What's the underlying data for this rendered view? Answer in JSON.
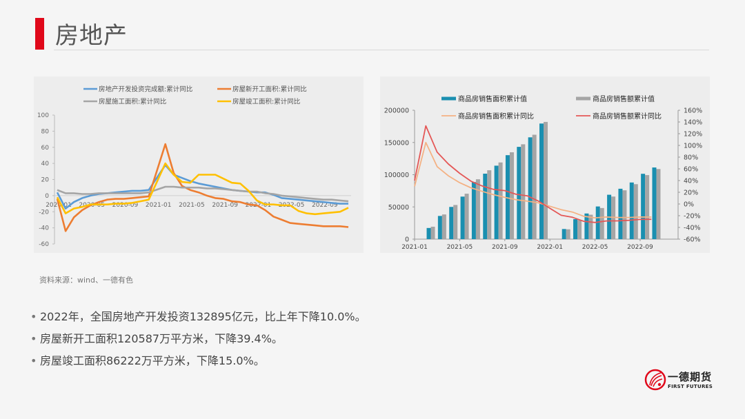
{
  "header": {
    "title": "房地产",
    "accent_color": "#e0081a"
  },
  "source_note": "资料来源：wind、一德有色",
  "bullets": [
    "2022年，全国房地产开发投资132895亿元，比上年下降10.0%。",
    "房屋新开工面积120587万平方米，下降39.4%。",
    "房屋竣工面积86222万平方米，下降15.0%。"
  ],
  "logo": {
    "name_cn": "一德期货",
    "name_en": "FIRST FUTURES"
  },
  "chart_data": [
    {
      "type": "line",
      "title": "",
      "legend": [
        "房地产开发投资完成额:累计同比",
        "房屋新开工面积:累计同比",
        "房屋施工面积:累计同比",
        "房屋竣工面积:累计同比"
      ],
      "legend_position": "top",
      "xlabel": "",
      "ylabel": "",
      "ylim": [
        -60,
        100
      ],
      "yticks": [
        100,
        80,
        60,
        40,
        20,
        0,
        -20,
        -40,
        -60
      ],
      "xticks": [
        "2020-01",
        "2020-05",
        "2020-09",
        "2021-01",
        "2021-05",
        "2021-09",
        "2022-01",
        "2022-05",
        "2022-09"
      ],
      "x": [
        "2020-01",
        "2020-02",
        "2020-03",
        "2020-04",
        "2020-05",
        "2020-06",
        "2020-07",
        "2020-08",
        "2020-09",
        "2020-10",
        "2020-11",
        "2020-12",
        "2021-01",
        "2021-02",
        "2021-03",
        "2021-04",
        "2021-05",
        "2021-06",
        "2021-07",
        "2021-08",
        "2021-09",
        "2021-10",
        "2021-11",
        "2021-12",
        "2022-01",
        "2022-02",
        "2022-03",
        "2022-04",
        "2022-05",
        "2022-06",
        "2022-07",
        "2022-08",
        "2022-09",
        "2022-10",
        "2022-11",
        "2022-12"
      ],
      "series": [
        {
          "name": "房地产开发投资完成额:累计同比",
          "color": "#5b9bd5",
          "values": [
            4,
            -16,
            -8,
            -3,
            0,
            2,
            3,
            4,
            5,
            6,
            6,
            7,
            null,
            38,
            26,
            22,
            18,
            15,
            13,
            11,
            9,
            7,
            6,
            5,
            4,
            4,
            1,
            -3,
            -4,
            -5,
            -6,
            -7,
            -8,
            -9,
            -10,
            -10
          ]
        },
        {
          "name": "房屋新开工面积:累计同比",
          "color": "#ed7d31",
          "values": [
            -4,
            -44,
            -27,
            -18,
            -12,
            -8,
            -5,
            -4,
            -4,
            -3,
            -2,
            -1,
            null,
            64,
            28,
            12,
            7,
            4,
            0,
            -3,
            -4,
            -7,
            -8,
            -11,
            -12,
            -18,
            -26,
            -30,
            -34,
            -35,
            -36,
            -37,
            -38,
            -38,
            -38,
            -39
          ]
        },
        {
          "name": "房屋施工面积:累计同比",
          "color": "#a5a5a5",
          "values": [
            7,
            3,
            3,
            2,
            2,
            3,
            3,
            3,
            3,
            3,
            3,
            4,
            null,
            11,
            11,
            10,
            10,
            10,
            9,
            9,
            8,
            7,
            6,
            5,
            5,
            3,
            2,
            0,
            -1,
            -2,
            -3,
            -4,
            -5,
            -5,
            -6,
            -7
          ]
        },
        {
          "name": "房屋竣工面积:累计同比",
          "color": "#ffc000",
          "values": [
            -2,
            -22,
            -16,
            -14,
            -11,
            -11,
            -11,
            -10,
            -10,
            -9,
            -7,
            -5,
            null,
            40,
            26,
            17,
            16,
            26,
            26,
            26,
            21,
            16,
            15,
            6,
            -6,
            -11,
            -11,
            -12,
            -12,
            -19,
            -22,
            -23,
            -22,
            -21,
            -20,
            -15
          ]
        }
      ]
    },
    {
      "type": "bar",
      "title": "",
      "legend": [
        "商品房销售面积累计值",
        "商品房销售额累计值",
        "商品房销售面积累计同比",
        "商品房销售额累计同比"
      ],
      "legend_position": "top",
      "xlabel": "",
      "ylabel": "",
      "y2label": "",
      "ylim": [
        0,
        200000
      ],
      "y2lim": [
        -60,
        160
      ],
      "yticks": [
        200000,
        150000,
        100000,
        50000,
        0
      ],
      "y2ticks": [
        "160%",
        "140%",
        "120%",
        "100%",
        "80%",
        "60%",
        "40%",
        "20%",
        "0%",
        "-20%",
        "-40%",
        "-60%"
      ],
      "xticks": [
        "2021-01",
        "2021-05",
        "2021-09",
        "2022-01",
        "2022-05",
        "2022-09"
      ],
      "categories": [
        "2021-01",
        "2021-02",
        "2021-03",
        "2021-04",
        "2021-05",
        "2021-06",
        "2021-07",
        "2021-08",
        "2021-09",
        "2021-10",
        "2021-11",
        "2021-12",
        "2022-01",
        "2022-02",
        "2022-03",
        "2022-04",
        "2022-05",
        "2022-06",
        "2022-07",
        "2022-08",
        "2022-09",
        "2022-10",
        "2022-11"
      ],
      "series": [
        {
          "name": "商品房销售面积累计值",
          "kind": "bar",
          "axis": "left",
          "color": "#1a8fb0",
          "values": [
            null,
            17300,
            36000,
            50000,
            66000,
            88600,
            101600,
            114000,
            130300,
            143200,
            158000,
            179400,
            null,
            15700,
            31000,
            39800,
            50700,
            68900,
            78200,
            87900,
            101400,
            111200,
            null
          ]
        },
        {
          "name": "商品房销售额累计值",
          "kind": "bar",
          "axis": "left",
          "color": "#a5a5a5",
          "values": [
            null,
            19300,
            38300,
            53000,
            70500,
            92900,
            106900,
            119000,
            134800,
            147200,
            162000,
            181900,
            null,
            15300,
            29700,
            37900,
            48300,
            66100,
            75800,
            85300,
            99400,
            108800,
            null
          ]
        },
        {
          "name": "商品房销售面积累计同比",
          "kind": "line",
          "axis": "right",
          "color": "#f4b183",
          "values": [
            30,
            104.9,
            63.8,
            48.1,
            36.3,
            27.7,
            21.5,
            15.9,
            11.3,
            7.3,
            4.8,
            1.9,
            null,
            -9.6,
            -13.8,
            -20.9,
            -23.6,
            -22.2,
            -23.1,
            -23.0,
            -22.2,
            -22.3,
            null
          ]
        },
        {
          "name": "商品房销售额累计同比",
          "kind": "line",
          "axis": "right",
          "color": "#e45756",
          "values": [
            40,
            133.4,
            88.5,
            68.2,
            52.4,
            38.9,
            30.7,
            25.0,
            22.8,
            16.6,
            13.9,
            4.8,
            null,
            -19.3,
            -22.7,
            -29.5,
            -31.5,
            -28.9,
            -28.8,
            -27.9,
            -26.3,
            -26.1,
            null
          ]
        }
      ]
    }
  ]
}
